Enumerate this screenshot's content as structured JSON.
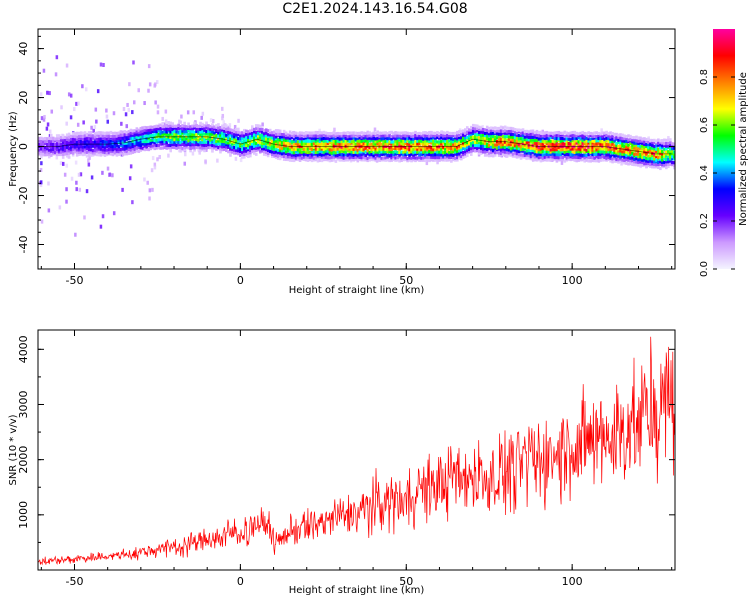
{
  "title": "C2E1.2024.143.16.54.G08",
  "chart_data": [
    {
      "type": "heatmap",
      "xlabel": "Height of straight line (km)",
      "ylabel": "Frequency (Hz)",
      "xlim": [
        -61,
        131
      ],
      "ylim": [
        -50,
        48
      ],
      "xticks": [
        -50,
        0,
        50,
        100
      ],
      "yticks": [
        -40,
        -20,
        0,
        20,
        40
      ],
      "colorbar": {
        "label": "Normalized spectral amplitude",
        "range": [
          0,
          1
        ],
        "ticks": [
          0.0,
          0.2,
          0.4,
          0.6,
          0.8
        ],
        "colormap": [
          "#f4f4ff",
          "#cc99ff",
          "#6600ff",
          "#0000ff",
          "#00ffff",
          "#00ff00",
          "#ffff00",
          "#ff8000",
          "#ff0000",
          "#ff00a0"
        ]
      },
      "ridge": {
        "x": [
          -60,
          -55,
          -50,
          -45,
          -40,
          -35,
          -30,
          -25,
          -20,
          -15,
          -10,
          -5,
          0,
          5,
          10,
          15,
          20,
          25,
          30,
          35,
          40,
          45,
          50,
          55,
          60,
          65,
          70,
          75,
          80,
          85,
          90,
          95,
          100,
          105,
          110,
          115,
          120,
          125,
          130
        ],
        "y": [
          0,
          0,
          1,
          1,
          1,
          1.5,
          3,
          4,
          4,
          4,
          4,
          3,
          1,
          3,
          1,
          0,
          0,
          0,
          0,
          0,
          0,
          0,
          0,
          0,
          0,
          0,
          3,
          2,
          2,
          1,
          0,
          0,
          0,
          0,
          0,
          -1,
          -2,
          -3,
          -3
        ],
        "amplitude": [
          0.22,
          0.25,
          0.3,
          0.32,
          0.36,
          0.42,
          0.48,
          0.55,
          0.62,
          0.65,
          0.6,
          0.62,
          0.6,
          0.66,
          0.7,
          0.78,
          0.8,
          0.82,
          0.85,
          0.84,
          0.82,
          0.84,
          0.86,
          0.85,
          0.82,
          0.8,
          0.65,
          0.78,
          0.8,
          0.84,
          0.9,
          0.92,
          0.92,
          0.9,
          0.88,
          0.8,
          0.82,
          0.85,
          0.6
        ]
      }
    },
    {
      "type": "line",
      "xlabel": "Height of straight line (km)",
      "ylabel": "SNR (10 * v/v)",
      "xlim": [
        -61,
        131
      ],
      "ylim": [
        0,
        4350
      ],
      "xticks": [
        -50,
        0,
        50,
        100
      ],
      "yticks": [
        1000,
        2000,
        3000,
        4000
      ],
      "color": "#ff0000",
      "series": [
        {
          "x": [
            -61,
            -55,
            -50,
            -45,
            -40,
            -35,
            -30,
            -25,
            -20,
            -15,
            -10,
            -5,
            0,
            5,
            9,
            10,
            15,
            20,
            25,
            30,
            35,
            40,
            45,
            50,
            55,
            60,
            65,
            70,
            75,
            80,
            85,
            90,
            95,
            100,
            105,
            110,
            115,
            120,
            125,
            130
          ],
          "y": [
            150,
            180,
            200,
            230,
            250,
            270,
            320,
            380,
            420,
            480,
            550,
            620,
            700,
            780,
            820,
            480,
            700,
            780,
            880,
            950,
            1050,
            1180,
            1250,
            1350,
            1450,
            1550,
            1650,
            1700,
            1700,
            1800,
            1900,
            2000,
            2100,
            2200,
            2300,
            2400,
            2550,
            2700,
            2850,
            3100
          ]
        }
      ]
    }
  ]
}
